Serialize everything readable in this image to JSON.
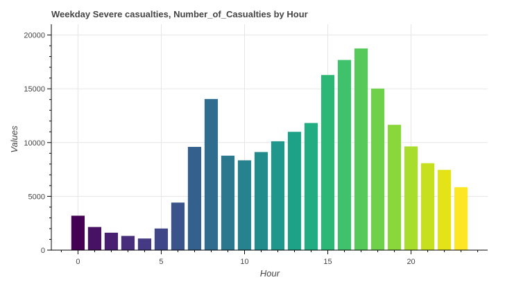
{
  "chart_data": {
    "type": "bar",
    "title": "Weekday Severe casualties, Number_of_Casualties by Hour",
    "xlabel": "Hour",
    "ylabel": "Values",
    "x": [
      0,
      1,
      2,
      3,
      4,
      5,
      6,
      7,
      8,
      9,
      10,
      11,
      12,
      13,
      14,
      15,
      16,
      17,
      18,
      19,
      20,
      21,
      22,
      23
    ],
    "values": [
      3200,
      2150,
      1620,
      1320,
      1080,
      2010,
      4420,
      9600,
      14050,
      8780,
      8350,
      9120,
      10120,
      11000,
      11820,
      16280,
      17680,
      18750,
      15020,
      11650,
      9640,
      8080,
      7460,
      5850
    ],
    "xlim": [
      -1.6,
      24.6
    ],
    "ylim": [
      0,
      21000
    ],
    "x_ticks": [
      0,
      5,
      10,
      15,
      20
    ],
    "y_ticks": [
      0,
      5000,
      10000,
      15000,
      20000
    ],
    "grid": true,
    "colormap": "viridis",
    "colors": [
      "#440154",
      "#471164",
      "#481F71",
      "#472D7B",
      "#443A83",
      "#3F4788",
      "#3A538B",
      "#34608D",
      "#2F6C8E",
      "#2A778E",
      "#26828E",
      "#228C8D",
      "#1F978B",
      "#1EA287",
      "#22AC81",
      "#2DB777",
      "#3FC26B",
      "#56C95A",
      "#6FD14A",
      "#8AD73B",
      "#A8DC2D",
      "#C6E020",
      "#E3E318",
      "#FDE725"
    ]
  }
}
